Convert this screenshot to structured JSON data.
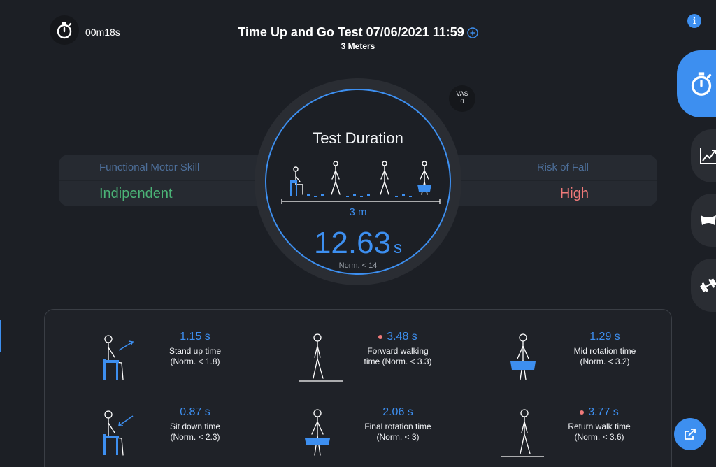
{
  "header": {
    "elapsed": "00m18s",
    "title": "Time Up and Go Test 07/06/2021 11:59",
    "subtitle": "3 Meters"
  },
  "summary": {
    "left_label": "Functional Motor Skill",
    "left_value": "Indipendent",
    "right_label": "Risk of Fall",
    "right_value": "High"
  },
  "dial": {
    "title": "Test Duration",
    "distance": "3 m",
    "value": "12.63",
    "unit": "s",
    "norm": "Norm. < 14"
  },
  "vas": {
    "label": "VAS",
    "value": "0"
  },
  "metrics": [
    {
      "value": "1.15 s",
      "name": "Stand up time",
      "norm": "(Norm. < 1.8)",
      "alert": false,
      "icon": "stand-up-icon"
    },
    {
      "value": "3.48 s",
      "name": "Forward walking",
      "norm": "time (Norm. < 3.3)",
      "alert": true,
      "icon": "forward-walk-icon"
    },
    {
      "value": "1.29 s",
      "name": "Mid rotation time",
      "norm": "(Norm. < 3.2)",
      "alert": false,
      "icon": "mid-rotation-icon"
    },
    {
      "value": "0.87 s",
      "name": "Sit down time",
      "norm": "(Norm. < 2.3)",
      "alert": false,
      "icon": "sit-down-icon"
    },
    {
      "value": "2.06 s",
      "name": "Final rotation time",
      "norm": "(Norm. < 3)",
      "alert": false,
      "icon": "final-rotation-icon"
    },
    {
      "value": "3.77 s",
      "name": "Return walk time",
      "norm": "(Norm. < 3.6)",
      "alert": true,
      "icon": "return-walk-icon"
    }
  ],
  "rail": [
    "stopwatch-icon",
    "chart-icon",
    "pelvis-icon",
    "dumbbell-icon"
  ],
  "colors": {
    "accent": "#3d8ff0",
    "ok": "#4bb477",
    "alert": "#f07a7a",
    "background": "#1c1f25"
  }
}
